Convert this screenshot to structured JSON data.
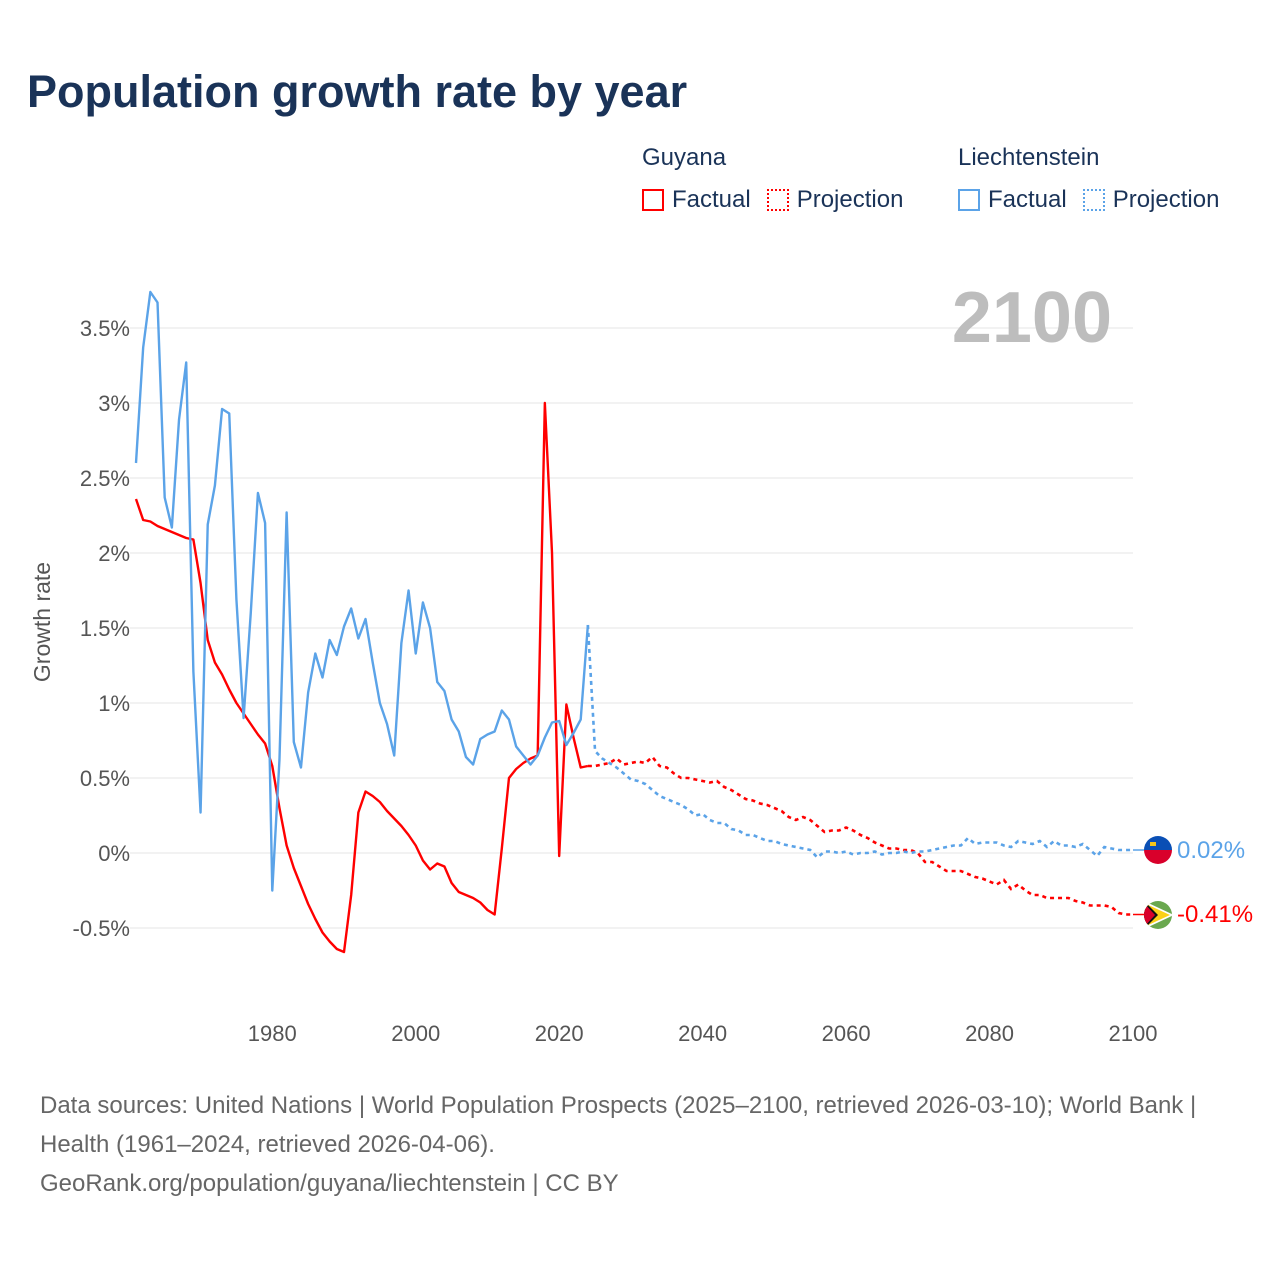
{
  "title": "Population growth rate by year",
  "legend": {
    "groups": [
      {
        "country": "Guyana",
        "factual": "Factual",
        "projection": "Projection",
        "color": "#ff0000"
      },
      {
        "country": "Liechtenstein",
        "factual": "Factual",
        "projection": "Projection",
        "color": "#5ba3e8"
      }
    ]
  },
  "year_display": "2100",
  "footer": {
    "line1": "Data sources: United Nations | World Population Prospects (2025–2100, retrieved 2026-03-10); World Bank | Health (1961–2024, retrieved 2026-04-06).",
    "line2": "GeoRank.org/population/guyana/liechtenstein | CC BY"
  },
  "chart_data": {
    "type": "line",
    "title": "Population growth rate by year",
    "xlabel": "",
    "ylabel": "Growth rate",
    "xlim": [
      1961,
      2100
    ],
    "ylim": [
      -1,
      3.9
    ],
    "x_ticks": [
      "1980",
      "2000",
      "2020",
      "2040",
      "2060",
      "2080",
      "2100"
    ],
    "x_tick_values": [
      1980,
      2000,
      2020,
      2040,
      2060,
      2080,
      2100
    ],
    "y_ticks": [
      "-0.5%",
      "0%",
      "0.5%",
      "1%",
      "1.5%",
      "2%",
      "2.5%",
      "3%",
      "3.5%"
    ],
    "y_tick_values": [
      -0.5,
      0,
      0.5,
      1,
      1.5,
      2,
      2.5,
      3,
      3.5
    ],
    "grid": true,
    "legend_position": "top-right",
    "series": [
      {
        "name": "Guyana",
        "color": "#ff0000",
        "end_label": "-0.41%",
        "factual_start": 1961,
        "factual": [
          2.36,
          2.22,
          2.21,
          2.18,
          2.16,
          2.14,
          2.12,
          2.1,
          2.09,
          1.8,
          1.42,
          1.27,
          1.19,
          1.09,
          1.0,
          0.93,
          0.86,
          0.79,
          0.73,
          0.58,
          0.3,
          0.05,
          -0.1,
          -0.22,
          -0.34,
          -0.44,
          -0.53,
          -0.59,
          -0.64,
          -0.66,
          -0.28,
          0.27,
          0.41,
          0.38,
          0.34,
          0.28,
          0.23,
          0.18,
          0.12,
          0.05,
          -0.05,
          -0.11,
          -0.07,
          -0.09,
          -0.2,
          -0.26,
          -0.28,
          -0.3,
          -0.33,
          -0.38,
          -0.41,
          0.03,
          0.5,
          0.56,
          0.6,
          0.63,
          0.65,
          3.0,
          2.0,
          -0.02,
          0.99,
          0.77,
          0.57,
          0.58
        ],
        "projection_start": 2025,
        "projection": [
          0.58,
          0.59,
          0.6,
          0.63,
          0.59,
          0.6,
          0.61,
          0.6,
          0.64,
          0.58,
          0.57,
          0.53,
          0.5,
          0.5,
          0.49,
          0.48,
          0.47,
          0.48,
          0.44,
          0.42,
          0.39,
          0.36,
          0.35,
          0.33,
          0.32,
          0.3,
          0.28,
          0.24,
          0.22,
          0.24,
          0.22,
          0.18,
          0.14,
          0.15,
          0.15,
          0.17,
          0.15,
          0.12,
          0.1,
          0.07,
          0.05,
          0.03,
          0.03,
          0.02,
          0.02,
          0.0,
          -0.06,
          -0.06,
          -0.09,
          -0.12,
          -0.12,
          -0.12,
          -0.14,
          -0.16,
          -0.17,
          -0.19,
          -0.21,
          -0.18,
          -0.24,
          -0.21,
          -0.25,
          -0.28,
          -0.28,
          -0.3,
          -0.3,
          -0.3,
          -0.3,
          -0.32,
          -0.33,
          -0.35,
          -0.35,
          -0.35,
          -0.36,
          -0.4,
          -0.41,
          -0.41
        ]
      },
      {
        "name": "Liechtenstein",
        "color": "#5ba3e8",
        "end_label": "0.02%",
        "factual_start": 1961,
        "factual": [
          2.6,
          3.37,
          3.74,
          3.67,
          2.37,
          2.17,
          2.89,
          3.27,
          1.21,
          0.27,
          2.19,
          2.45,
          2.96,
          2.93,
          1.69,
          0.9,
          1.6,
          2.4,
          2.2,
          -0.25,
          0.62,
          2.27,
          0.74,
          0.57,
          1.07,
          1.33,
          1.17,
          1.42,
          1.32,
          1.51,
          1.63,
          1.43,
          1.56,
          1.27,
          1.0,
          0.86,
          0.65,
          1.4,
          1.75,
          1.33,
          1.67,
          1.5,
          1.14,
          1.08,
          0.89,
          0.81,
          0.64,
          0.59,
          0.76,
          0.79,
          0.81,
          0.95,
          0.89,
          0.71,
          0.65,
          0.59,
          0.65,
          0.77,
          0.87,
          0.88,
          0.72,
          0.8,
          0.89,
          1.52
        ],
        "projection_start": 2025,
        "projection": [
          0.68,
          0.63,
          0.6,
          0.57,
          0.53,
          0.49,
          0.48,
          0.46,
          0.42,
          0.38,
          0.36,
          0.34,
          0.32,
          0.29,
          0.25,
          0.26,
          0.22,
          0.2,
          0.2,
          0.16,
          0.15,
          0.12,
          0.12,
          0.1,
          0.08,
          0.08,
          0.06,
          0.05,
          0.04,
          0.03,
          0.02,
          -0.03,
          0.01,
          0.01,
          0.0,
          0.01,
          -0.01,
          0.0,
          0.0,
          0.01,
          -0.01,
          0.0,
          0.0,
          0.01,
          0.0,
          0.01,
          0.01,
          0.02,
          0.03,
          0.04,
          0.05,
          0.05,
          0.1,
          0.06,
          0.07,
          0.07,
          0.07,
          0.05,
          0.04,
          0.08,
          0.07,
          0.06,
          0.08,
          0.04,
          0.08,
          0.05,
          0.05,
          0.04,
          0.06,
          0.02,
          -0.02,
          0.04,
          0.03,
          0.02,
          0.02,
          0.02
        ]
      }
    ]
  }
}
